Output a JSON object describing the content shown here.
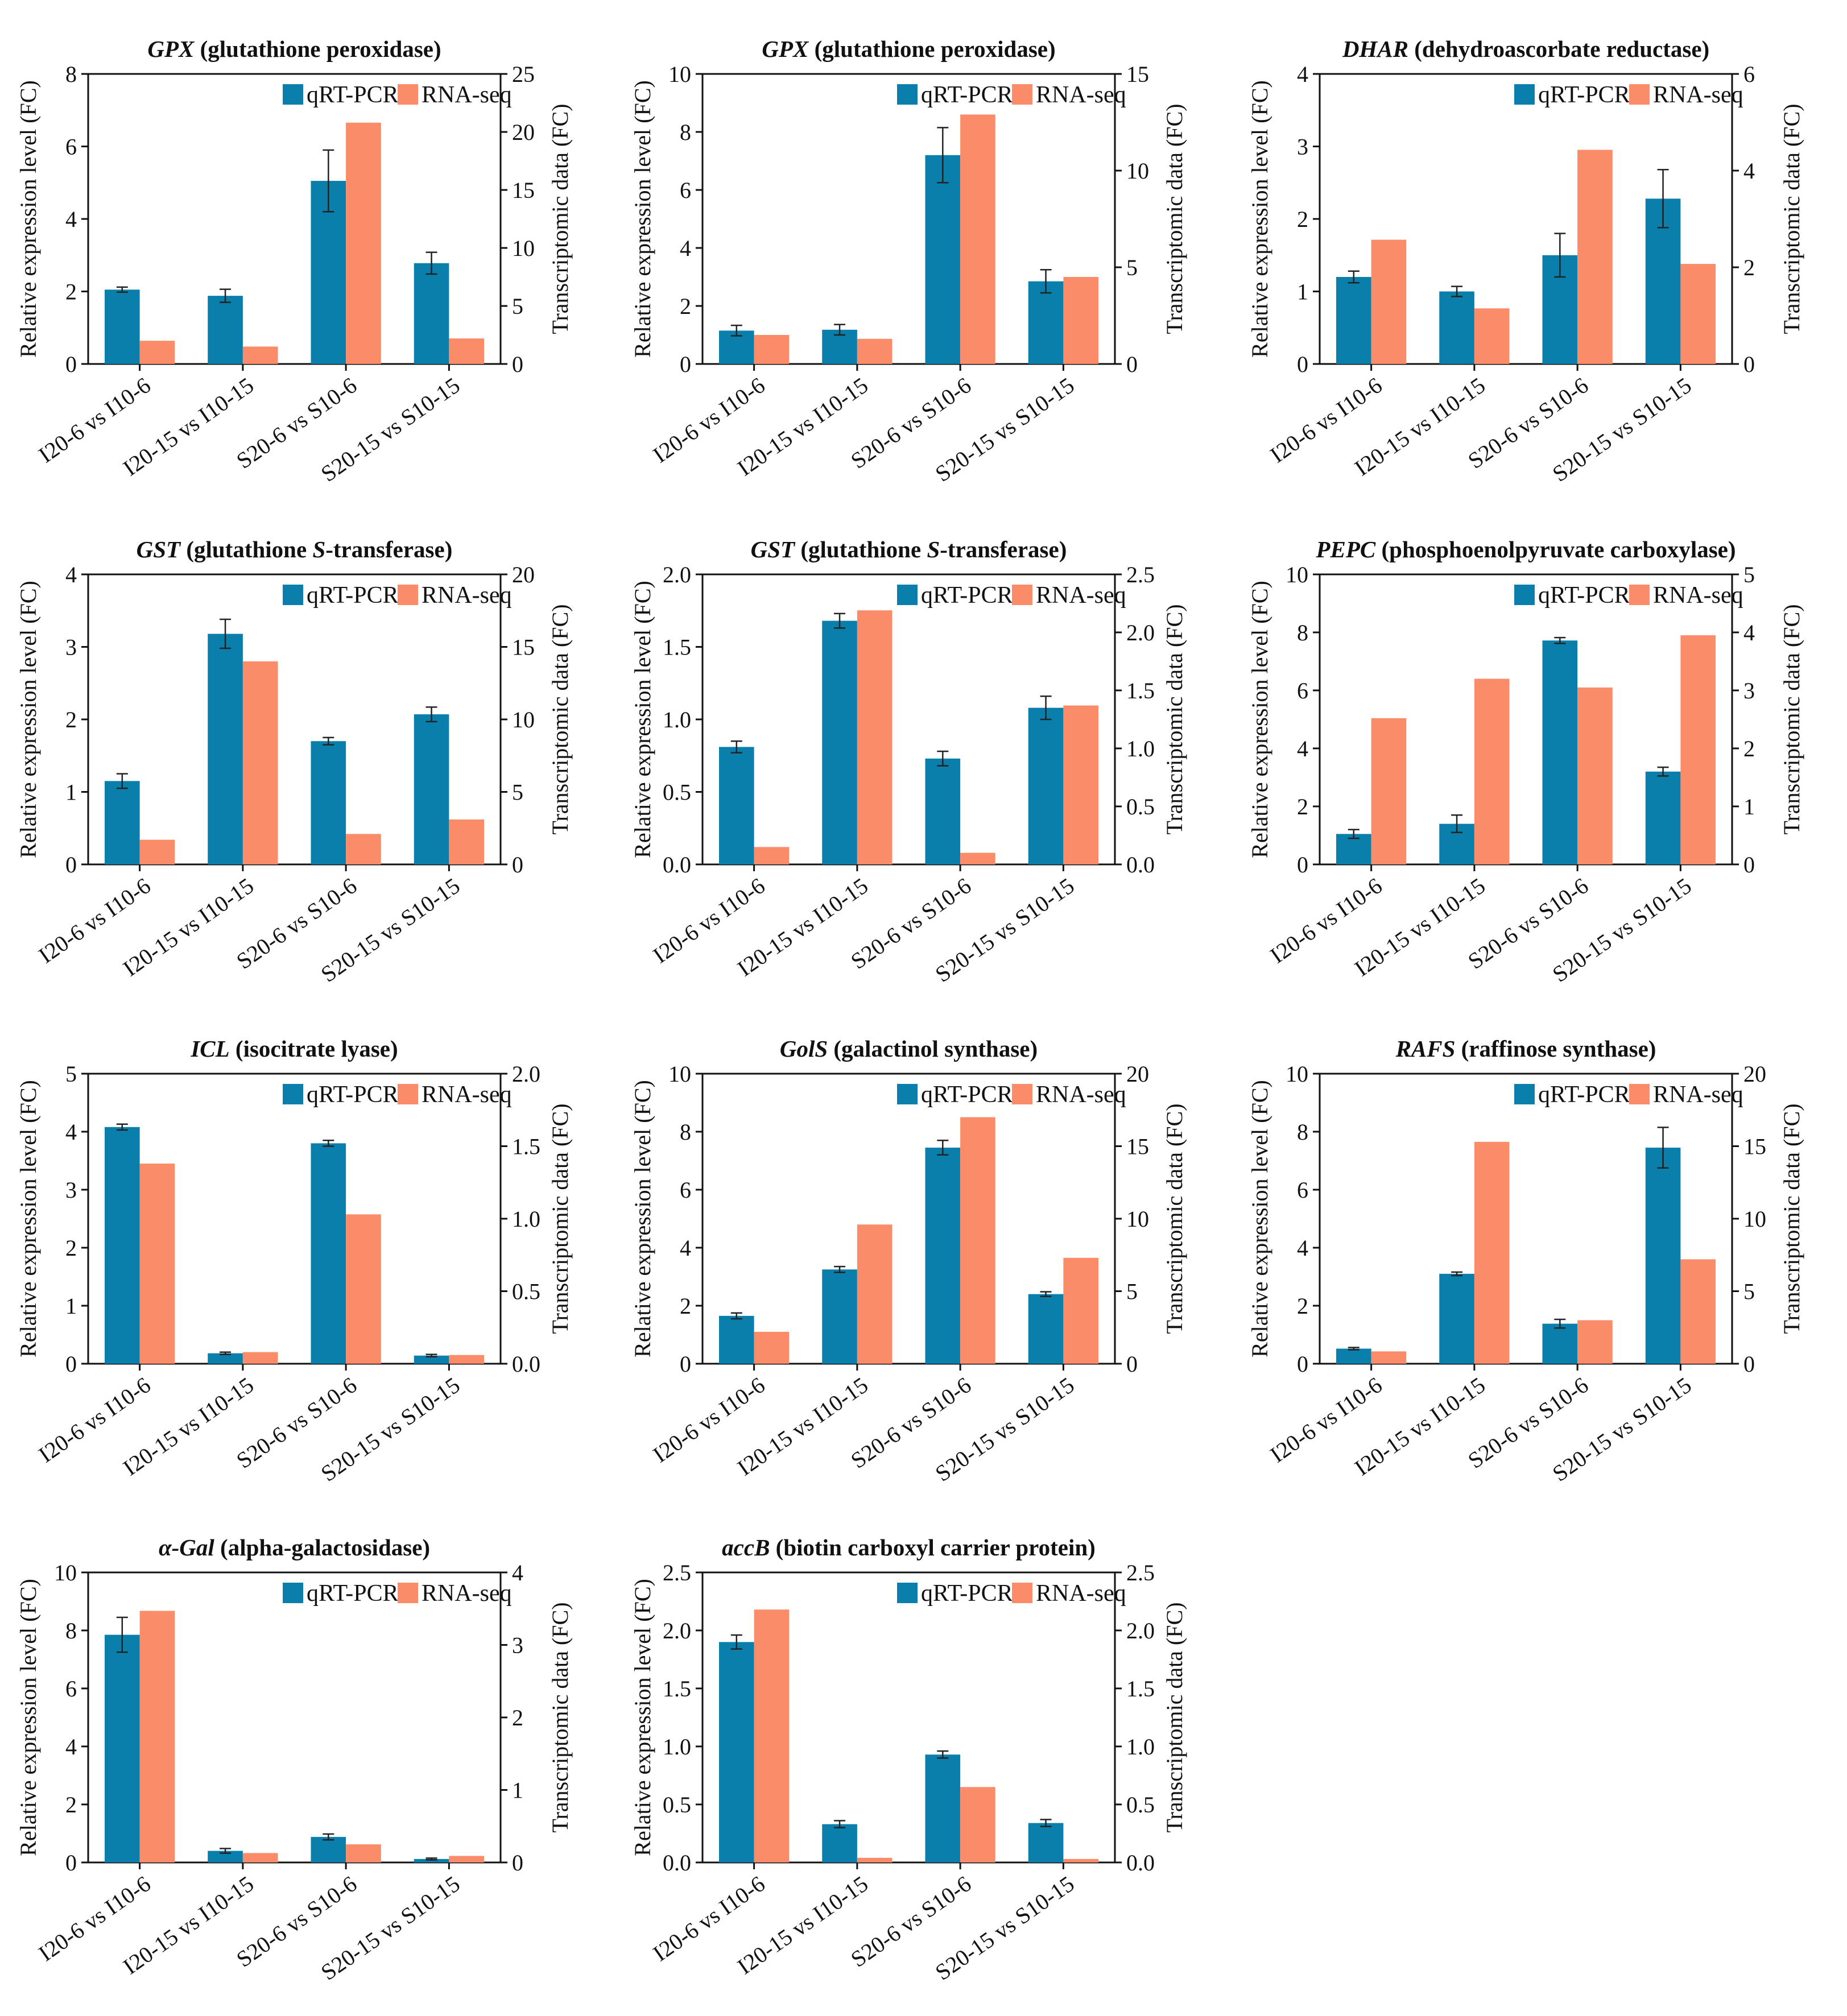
{
  "colors": {
    "qrt": "#0a7fab",
    "rna": "#fb8c6a",
    "axis": "#111111"
  },
  "legend": {
    "qrt_label": "qRT-PCR",
    "rna_label": "RNA-seq"
  },
  "chart_data": [
    {
      "type": "bar",
      "title_gene": "GPX",
      "title_desc": " (glutathione peroxidase)",
      "title_desc_italic": false,
      "categories": [
        "I20-6 vs I10-6",
        "I20-15 vs I10-15",
        "S20-6 vs S10-6",
        "S20-15 vs S10-15"
      ],
      "ylabel": "Relative expression level (FC)",
      "y2label": "Transcriptomic data (FC)",
      "ylim": [
        0,
        8
      ],
      "yticks": [
        "0",
        "2",
        "4",
        "6",
        "8"
      ],
      "y2lim": [
        0,
        25
      ],
      "y2ticks": [
        "0",
        "5",
        "10",
        "15",
        "20",
        "25"
      ],
      "series": [
        {
          "name": "qRT-PCR",
          "axis": "left",
          "values": [
            2.05,
            1.88,
            5.05,
            2.78
          ],
          "errors": [
            0.07,
            0.18,
            0.85,
            0.3
          ]
        },
        {
          "name": "RNA-seq",
          "axis": "right",
          "values": [
            2.0,
            1.5,
            20.8,
            2.2
          ]
        }
      ]
    },
    {
      "type": "bar",
      "title_gene": "GPX",
      "title_desc": " (glutathione peroxidase)",
      "title_desc_italic": false,
      "categories": [
        "I20-6 vs I10-6",
        "I20-15 vs I10-15",
        "S20-6 vs S10-6",
        "S20-15 vs S10-15"
      ],
      "ylabel": "Relative expression level (FC)",
      "y2label": "Transcriptomic data (FC)",
      "ylim": [
        0,
        10
      ],
      "yticks": [
        "0",
        "2",
        "4",
        "6",
        "8",
        "10"
      ],
      "y2lim": [
        0,
        15
      ],
      "y2ticks": [
        "0",
        "5",
        "10",
        "15"
      ],
      "series": [
        {
          "name": "qRT-PCR",
          "axis": "left",
          "values": [
            1.15,
            1.18,
            7.2,
            2.85
          ],
          "errors": [
            0.18,
            0.18,
            0.95,
            0.4
          ]
        },
        {
          "name": "RNA-seq",
          "axis": "right",
          "values": [
            1.5,
            1.3,
            12.9,
            4.5
          ]
        }
      ]
    },
    {
      "type": "bar",
      "title_gene": "DHAR",
      "title_desc": " (dehydroascorbate reductase)",
      "title_desc_italic": false,
      "categories": [
        "I20-6 vs I10-6",
        "I20-15 vs I10-15",
        "S20-6 vs S10-6",
        "S20-15 vs S10-15"
      ],
      "ylabel": "Relative expression level (FC)",
      "y2label": "Transcriptomic data (FC)",
      "ylim": [
        0,
        4
      ],
      "yticks": [
        "0",
        "1",
        "2",
        "3",
        "4"
      ],
      "y2lim": [
        0,
        6
      ],
      "y2ticks": [
        "0",
        "2",
        "4",
        "6"
      ],
      "series": [
        {
          "name": "qRT-PCR",
          "axis": "left",
          "values": [
            1.2,
            1.0,
            1.5,
            2.28
          ],
          "errors": [
            0.08,
            0.07,
            0.3,
            0.4
          ]
        },
        {
          "name": "RNA-seq",
          "axis": "right",
          "values": [
            2.57,
            1.15,
            4.43,
            2.07
          ]
        }
      ]
    },
    {
      "type": "bar",
      "title_gene": "GST",
      "title_desc": " (glutathione ",
      "title_tail_italic": "S",
      "title_tail": "-transferase)",
      "categories": [
        "I20-6 vs I10-6",
        "I20-15 vs I10-15",
        "S20-6 vs S10-6",
        "S20-15 vs S10-15"
      ],
      "ylabel": "Relative expression level (FC)",
      "y2label": "Transcriptomic data (FC)",
      "ylim": [
        0,
        4
      ],
      "yticks": [
        "0",
        "1",
        "2",
        "3",
        "4"
      ],
      "y2lim": [
        0,
        20
      ],
      "y2ticks": [
        "0",
        "5",
        "10",
        "15",
        "20"
      ],
      "series": [
        {
          "name": "qRT-PCR",
          "axis": "left",
          "values": [
            1.15,
            3.18,
            1.7,
            2.07
          ],
          "errors": [
            0.1,
            0.2,
            0.05,
            0.1
          ]
        },
        {
          "name": "RNA-seq",
          "axis": "right",
          "values": [
            1.7,
            14.0,
            2.1,
            3.1
          ]
        }
      ]
    },
    {
      "type": "bar",
      "title_gene": "GST",
      "title_desc": " (glutathione ",
      "title_tail_italic": "S",
      "title_tail": "-transferase)",
      "categories": [
        "I20-6 vs I10-6",
        "I20-15 vs I10-15",
        "S20-6 vs S10-6",
        "S20-15 vs S10-15"
      ],
      "ylabel": "Relative expression level (FC)",
      "y2label": "Transcriptomic data (FC)",
      "ylim": [
        0,
        2
      ],
      "yticks": [
        "0.0",
        "0.5",
        "1.0",
        "1.5",
        "2.0"
      ],
      "y2lim": [
        0,
        2.5
      ],
      "y2ticks": [
        "0.0",
        "0.5",
        "1.0",
        "1.5",
        "2.0",
        "2.5"
      ],
      "series": [
        {
          "name": "qRT-PCR",
          "axis": "left",
          "values": [
            0.81,
            1.68,
            0.73,
            1.08
          ],
          "errors": [
            0.04,
            0.05,
            0.05,
            0.08
          ]
        },
        {
          "name": "RNA-seq",
          "axis": "right",
          "values": [
            0.15,
            2.19,
            0.1,
            1.37
          ]
        }
      ]
    },
    {
      "type": "bar",
      "title_gene": "PEPC",
      "title_desc": " (phosphoenolpyruvate carboxylase)",
      "title_desc_italic": false,
      "categories": [
        "I20-6 vs I10-6",
        "I20-15 vs I10-15",
        "S20-6 vs S10-6",
        "S20-15 vs S10-15"
      ],
      "ylabel": "Relative expression level (FC)",
      "y2label": "Transcriptomic data (FC)",
      "ylim": [
        0,
        10
      ],
      "yticks": [
        "0",
        "2",
        "4",
        "6",
        "8",
        "10"
      ],
      "y2lim": [
        0,
        5
      ],
      "y2ticks": [
        "0",
        "1",
        "2",
        "3",
        "4",
        "5"
      ],
      "series": [
        {
          "name": "qRT-PCR",
          "axis": "left",
          "values": [
            1.05,
            1.4,
            7.72,
            3.2
          ],
          "errors": [
            0.15,
            0.3,
            0.1,
            0.15
          ]
        },
        {
          "name": "RNA-seq",
          "axis": "right",
          "values": [
            2.52,
            3.2,
            3.05,
            3.95
          ]
        }
      ]
    },
    {
      "type": "bar",
      "title_gene": "ICL",
      "title_desc": " (isocitrate lyase)",
      "title_desc_italic": false,
      "categories": [
        "I20-6 vs I10-6",
        "I20-15 vs I10-15",
        "S20-6 vs S10-6",
        "S20-15 vs S10-15"
      ],
      "ylabel": "Relative expression level (FC)",
      "y2label": "Transcriptomic data (FC)",
      "ylim": [
        0,
        5
      ],
      "yticks": [
        "0",
        "1",
        "2",
        "3",
        "4",
        "5"
      ],
      "y2lim": [
        0,
        2
      ],
      "y2ticks": [
        "0.0",
        "0.5",
        "1.0",
        "1.5",
        "2.0"
      ],
      "series": [
        {
          "name": "qRT-PCR",
          "axis": "left",
          "values": [
            4.08,
            0.18,
            3.8,
            0.14
          ],
          "errors": [
            0.05,
            0.02,
            0.05,
            0.02
          ]
        },
        {
          "name": "RNA-seq",
          "axis": "right",
          "values": [
            1.38,
            0.08,
            1.03,
            0.06
          ]
        }
      ]
    },
    {
      "type": "bar",
      "title_gene": "GolS",
      "title_desc": " (galactinol synthase)",
      "title_desc_italic": false,
      "categories": [
        "I20-6 vs I10-6",
        "I20-15 vs I10-15",
        "S20-6 vs S10-6",
        "S20-15 vs S10-15"
      ],
      "ylabel": "Relative expression level (FC)",
      "y2label": "Transcriptomic data (FC)",
      "ylim": [
        0,
        10
      ],
      "yticks": [
        "0",
        "2",
        "4",
        "6",
        "8",
        "10"
      ],
      "y2lim": [
        0,
        20
      ],
      "y2ticks": [
        "0",
        "5",
        "10",
        "15",
        "20"
      ],
      "series": [
        {
          "name": "qRT-PCR",
          "axis": "left",
          "values": [
            1.65,
            3.25,
            7.45,
            2.4
          ],
          "errors": [
            0.1,
            0.1,
            0.25,
            0.08
          ]
        },
        {
          "name": "RNA-seq",
          "axis": "right",
          "values": [
            2.2,
            9.6,
            17.0,
            7.3
          ]
        }
      ]
    },
    {
      "type": "bar",
      "title_gene": "RAFS",
      "title_desc": " (raffinose synthase)",
      "title_desc_italic": false,
      "categories": [
        "I20-6 vs I10-6",
        "I20-15 vs I10-15",
        "S20-6 vs S10-6",
        "S20-15 vs S10-15"
      ],
      "ylabel": "Relative expression level (FC)",
      "y2label": "Transcriptomic data (FC)",
      "ylim": [
        0,
        10
      ],
      "yticks": [
        "0",
        "2",
        "4",
        "6",
        "8",
        "10"
      ],
      "y2lim": [
        0,
        20
      ],
      "y2ticks": [
        "0",
        "5",
        "10",
        "15",
        "20"
      ],
      "series": [
        {
          "name": "qRT-PCR",
          "axis": "left",
          "values": [
            0.52,
            3.1,
            1.38,
            7.45
          ],
          "errors": [
            0.04,
            0.06,
            0.15,
            0.7
          ]
        },
        {
          "name": "RNA-seq",
          "axis": "right",
          "values": [
            0.85,
            15.3,
            3.0,
            7.2
          ]
        }
      ]
    },
    {
      "type": "bar",
      "title_gene": "α-Gal",
      "title_desc": " (alpha-galactosidase)",
      "title_desc_italic": false,
      "categories": [
        "I20-6 vs I10-6",
        "I20-15 vs I10-15",
        "S20-6 vs S10-6",
        "S20-15 vs S10-15"
      ],
      "ylabel": "Relative expression level (FC)",
      "y2label": "Transcriptomic data (FC)",
      "ylim": [
        0,
        10
      ],
      "yticks": [
        "0",
        "2",
        "4",
        "6",
        "8",
        "10"
      ],
      "y2lim": [
        0,
        4
      ],
      "y2ticks": [
        "0",
        "1",
        "2",
        "3",
        "4"
      ],
      "series": [
        {
          "name": "qRT-PCR",
          "axis": "left",
          "values": [
            7.85,
            0.4,
            0.88,
            0.12
          ],
          "errors": [
            0.6,
            0.08,
            0.1,
            0.03
          ]
        },
        {
          "name": "RNA-seq",
          "axis": "right",
          "values": [
            3.47,
            0.13,
            0.25,
            0.09
          ]
        }
      ]
    },
    {
      "type": "bar",
      "title_gene": "accB",
      "title_desc": " (biotin carboxyl carrier protein)",
      "title_desc_italic": false,
      "categories": [
        "I20-6 vs I10-6",
        "I20-15 vs I10-15",
        "S20-6 vs S10-6",
        "S20-15 vs S10-15"
      ],
      "ylabel": "Relative expression level (FC)",
      "y2label": "Transcriptomic data (FC)",
      "ylim": [
        0,
        2.5
      ],
      "yticks": [
        "0.0",
        "0.5",
        "1.0",
        "1.5",
        "2.0",
        "2.5"
      ],
      "y2lim": [
        0,
        2.5
      ],
      "y2ticks": [
        "0.0",
        "0.5",
        "1.0",
        "1.5",
        "2.0",
        "2.5"
      ],
      "series": [
        {
          "name": "qRT-PCR",
          "axis": "left",
          "values": [
            1.9,
            0.33,
            0.93,
            0.34
          ],
          "errors": [
            0.06,
            0.03,
            0.03,
            0.03
          ]
        },
        {
          "name": "RNA-seq",
          "axis": "right",
          "values": [
            2.18,
            0.04,
            0.65,
            0.03
          ]
        }
      ]
    }
  ]
}
